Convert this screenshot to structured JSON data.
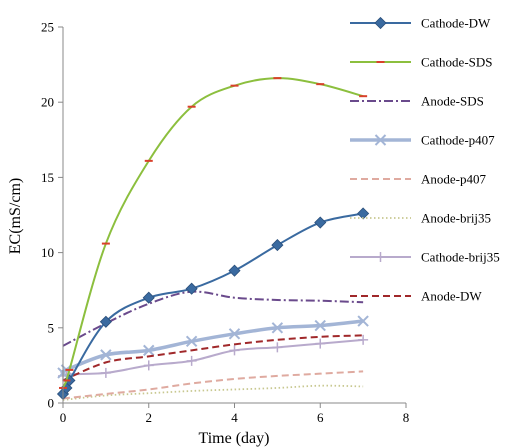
{
  "chart_data": {
    "type": "line",
    "xlabel": "Time (day)",
    "ylabel": "EC(mS/cm)",
    "xlim": [
      0,
      8
    ],
    "ylim": [
      0,
      25
    ],
    "xticks": [
      "0",
      "2",
      "4",
      "6",
      "8"
    ],
    "yticks": [
      "0",
      "5",
      "10",
      "15",
      "20",
      "25"
    ],
    "grid": false,
    "legend_position": "right",
    "series": [
      {
        "name": "Cathode-DW",
        "color": "#3a6aa0",
        "style": "solid",
        "marker": "diamond",
        "x": [
          0,
          0.08,
          0.15,
          1,
          2,
          3,
          4,
          5,
          6,
          7
        ],
        "y": [
          0.6,
          1.0,
          1.5,
          5.4,
          7.0,
          7.6,
          8.8,
          10.5,
          12.0,
          12.6
        ]
      },
      {
        "name": "Cathode-SDS",
        "color": "#8cbf3e",
        "style": "solid",
        "marker": "dash",
        "x": [
          0,
          0.08,
          0.15,
          1,
          2,
          3,
          4,
          5,
          6,
          7
        ],
        "y": [
          1.0,
          1.5,
          2.2,
          10.6,
          16.1,
          19.7,
          21.1,
          21.6,
          21.2,
          20.4
        ]
      },
      {
        "name": "Anode-SDS",
        "color": "#6a4a8c",
        "style": "dashdot",
        "marker": "none",
        "x": [
          0,
          1,
          2,
          3,
          4,
          5,
          6,
          7
        ],
        "y": [
          3.8,
          5.3,
          6.6,
          7.4,
          7.0,
          6.85,
          6.8,
          6.7
        ]
      },
      {
        "name": "Cathode-p407",
        "color": "#a3b5d6",
        "style": "solid",
        "marker": "x",
        "x": [
          0,
          0.08,
          1,
          2,
          3,
          4,
          5,
          6,
          7
        ],
        "y": [
          2.0,
          2.2,
          3.2,
          3.5,
          4.1,
          4.6,
          5.0,
          5.15,
          5.45
        ]
      },
      {
        "name": "Anode-p407",
        "color": "#dfaaa0",
        "style": "dashed",
        "marker": "none",
        "x": [
          0,
          1,
          2,
          3,
          4,
          5,
          6,
          7
        ],
        "y": [
          0.3,
          0.6,
          0.9,
          1.3,
          1.6,
          1.8,
          1.95,
          2.1
        ]
      },
      {
        "name": "Anode-brij35",
        "color": "#c8c890",
        "style": "dotted",
        "marker": "none",
        "x": [
          0,
          1,
          2,
          3,
          4,
          5,
          6,
          7
        ],
        "y": [
          0.2,
          0.5,
          0.65,
          0.8,
          0.9,
          1.0,
          1.15,
          1.1
        ]
      },
      {
        "name": "Cathode-brij35",
        "color": "#b8aacc",
        "style": "solid",
        "marker": "plus",
        "x": [
          0,
          0.08,
          1,
          2,
          3,
          4,
          5,
          6,
          7
        ],
        "y": [
          1.8,
          1.9,
          2.0,
          2.5,
          2.8,
          3.5,
          3.7,
          3.95,
          4.2
        ]
      },
      {
        "name": "Anode-DW",
        "color": "#a0282a",
        "style": "dashed",
        "marker": "none",
        "x": [
          0,
          1,
          2,
          3,
          4,
          5,
          6,
          7
        ],
        "y": [
          1.5,
          2.7,
          3.1,
          3.5,
          3.9,
          4.2,
          4.4,
          4.5
        ]
      }
    ]
  }
}
